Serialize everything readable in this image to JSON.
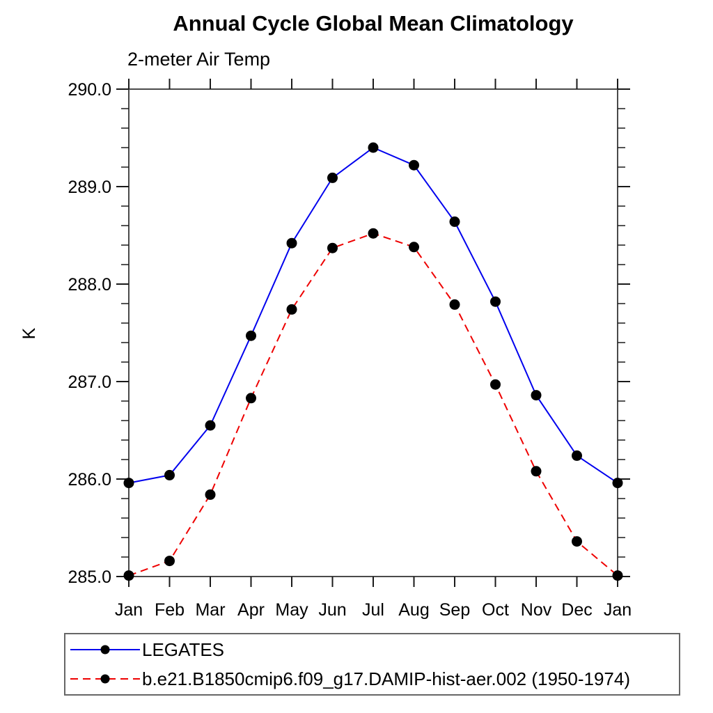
{
  "chart_data": {
    "type": "line",
    "title": "Annual Cycle Global Mean Climatology",
    "subtitle": "2-meter Air Temp",
    "ylabel": "K",
    "xlabel": "",
    "ylim": [
      285.0,
      290.0
    ],
    "y_major_ticks": [
      "285.0",
      "286.0",
      "287.0",
      "288.0",
      "289.0",
      "290.0"
    ],
    "y_minor_step": 0.2,
    "grid": false,
    "legend_position": "bottom-left-box",
    "categories": [
      "Jan",
      "Feb",
      "Mar",
      "Apr",
      "May",
      "Jun",
      "Jul",
      "Aug",
      "Sep",
      "Oct",
      "Nov",
      "Dec",
      "Jan"
    ],
    "series": [
      {
        "name": "LEGATES",
        "color": "#0000ee",
        "line_style": "solid",
        "marker": "filled-circle",
        "marker_color": "#000000",
        "values": [
          285.96,
          286.04,
          286.55,
          287.47,
          288.42,
          289.09,
          289.4,
          289.22,
          288.64,
          287.82,
          286.86,
          286.24,
          285.96
        ]
      },
      {
        "name": "b.e21.B1850cmip6.f09_g17.DAMIP-hist-aer.002 (1950-1974)",
        "color": "#ee0000",
        "line_style": "dashed",
        "marker": "filled-circle",
        "marker_color": "#000000",
        "values": [
          285.01,
          285.16,
          285.84,
          286.83,
          287.74,
          288.37,
          288.52,
          288.38,
          287.79,
          286.97,
          286.08,
          285.36,
          285.01
        ]
      }
    ]
  }
}
